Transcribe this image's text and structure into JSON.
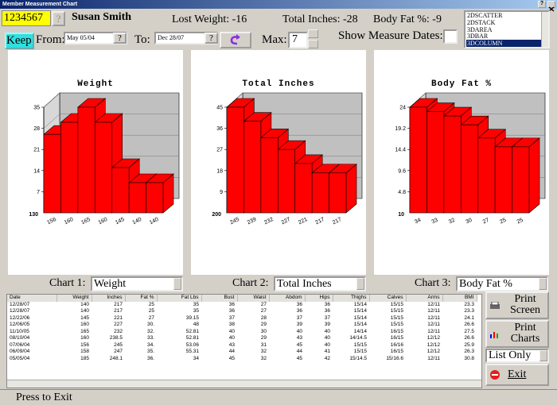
{
  "window_title": "Member Measurement Chart",
  "member": {
    "id": "1234567",
    "name": "Susan Smith",
    "lost_weight": "Lost Weight: -16",
    "total_inches": "Total Inches: -28",
    "body_fat": "Body Fat %: -9"
  },
  "chart_styles": [
    "2DSCATTER",
    "2DSTACK",
    "3DAREA",
    "3DBAR",
    "3DCOLUMN"
  ],
  "controls": {
    "keep": "Keep",
    "from_label": "From:",
    "from_value": "May 05/04",
    "to_label": "To:",
    "to_value": "Dec 28/07",
    "max_label": "Max:",
    "max_value": "7",
    "show_dates": "Show Measure Dates:",
    "help": "?"
  },
  "chart_selectors": [
    {
      "label": "Chart 1:",
      "value": "Weight"
    },
    {
      "label": "Chart 2:",
      "value": "Total Inches"
    },
    {
      "label": "Chart 3:",
      "value": "Body Fat %"
    }
  ],
  "chart_data": [
    {
      "type": "bar",
      "title": "Weight",
      "axis_base_label": "130",
      "categories": [
        "156",
        "160",
        "165",
        "160",
        "145",
        "140",
        "140"
      ],
      "values": [
        26,
        30,
        35,
        30,
        15,
        10,
        10
      ],
      "color": "#ff0000",
      "ylim": [
        0,
        35
      ],
      "yticks": [
        7,
        14,
        21,
        28,
        35
      ]
    },
    {
      "type": "bar",
      "title": "Total Inches",
      "axis_base_label": "200",
      "categories": [
        "245",
        "239",
        "232",
        "227",
        "221",
        "217",
        "217"
      ],
      "values": [
        45,
        39,
        32,
        27,
        21,
        17,
        17
      ],
      "color": "#ff0000",
      "ylim": [
        0,
        45
      ],
      "yticks": [
        9,
        18,
        27,
        36,
        45
      ]
    },
    {
      "type": "bar",
      "title": "Body Fat %",
      "axis_base_label": "10",
      "categories": [
        "34",
        "33",
        "32",
        "30",
        "27",
        "25",
        "25"
      ],
      "values": [
        24,
        23,
        22,
        20,
        17,
        15,
        15
      ],
      "color": "#ff0000",
      "ylim": [
        0,
        24
      ],
      "yticks": [
        4.8,
        9.6,
        14.4,
        19.2,
        24
      ]
    }
  ],
  "table": {
    "columns": [
      "Date",
      "Weight",
      "Inches",
      "Fat %",
      "Fat Lbs",
      "Bust",
      "Waist",
      "Abdom",
      "Hips",
      "Thighs",
      "Calves",
      "Arms",
      "BMI"
    ],
    "rows": [
      [
        "12/28/07",
        "140",
        "217",
        "25",
        "35",
        "36",
        "27",
        "36",
        "36",
        "15/14",
        "15/15",
        "12/11",
        "23.3"
      ],
      [
        "12/28/07",
        "140",
        "217",
        "25",
        "35",
        "36",
        "27",
        "36",
        "36",
        "15/14",
        "15/15",
        "12/11",
        "23.3"
      ],
      [
        "12/22/06",
        "145",
        "221",
        "27",
        "39.15",
        "37",
        "28",
        "37",
        "37",
        "15/14",
        "15/15",
        "12/11",
        "24.1"
      ],
      [
        "12/06/05",
        "160",
        "227",
        "30.",
        "48",
        "38",
        "29",
        "39",
        "39",
        "15/14",
        "15/15",
        "12/11",
        "26.6"
      ],
      [
        "11/10/05",
        "165",
        "232",
        "32.",
        "52.81",
        "40",
        "30",
        "40",
        "40",
        "14/14",
        "16/15",
        "12/11",
        "27.5"
      ],
      [
        "08/10/04",
        "160",
        "238.5",
        "33.",
        "52.81",
        "40",
        "29",
        "43",
        "40",
        "14/14.5",
        "16/15",
        "12/12",
        "26.6"
      ],
      [
        "07/06/04",
        "156",
        "245",
        "34.",
        "53.06",
        "43",
        "31",
        "45",
        "40",
        "15/15",
        "16/16",
        "12/12",
        "25.9"
      ],
      [
        "06/09/04",
        "158",
        "247",
        "35.",
        "55.31",
        "44",
        "32",
        "44",
        "41",
        "15/15",
        "16/15",
        "12/12",
        "26.3"
      ],
      [
        "05/05/04",
        "185",
        "248.1",
        "36.",
        "34",
        "45",
        "32",
        "45",
        "42",
        "15/14.5",
        "15/16.6",
        "12/11",
        "30.8"
      ]
    ]
  },
  "buttons": {
    "print_screen": "Print Screen",
    "print_charts": "Print Charts",
    "list_mode": "List Only",
    "exit": "Exit"
  },
  "status": "Press to Exit"
}
